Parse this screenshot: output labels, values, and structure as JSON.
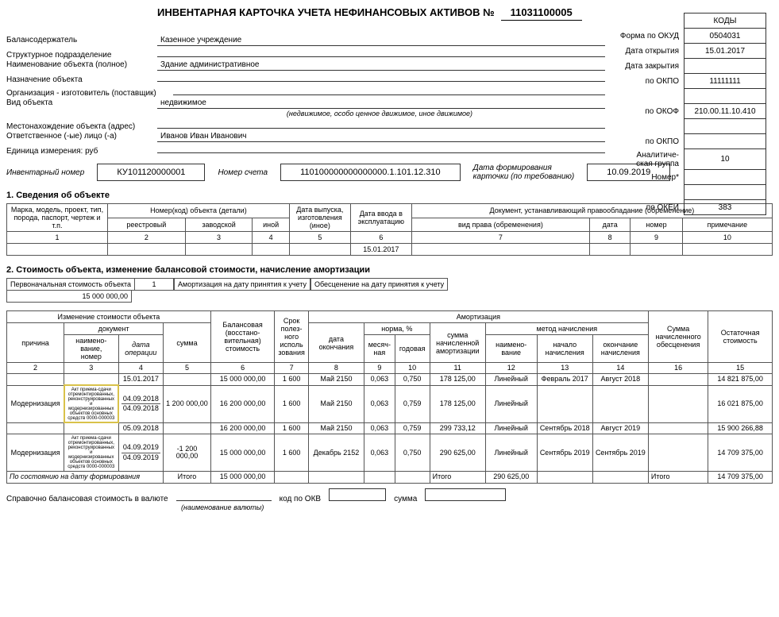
{
  "header": {
    "title": "ИНВЕНТАРНАЯ КАРТОЧКА УЧЕТА НЕФИНАНСОВЫХ АКТИВОВ  №",
    "card_number": "11031100005",
    "codes_header": "КОДЫ",
    "rows": [
      {
        "label": "Форма по ОКУД",
        "value": "0504031"
      },
      {
        "label": "Дата открытия",
        "value": "15.01.2017"
      },
      {
        "label": "Дата закрытия",
        "value": ""
      },
      {
        "label": "по ОКПО",
        "value": "11111111"
      },
      {
        "label": "",
        "value": ""
      },
      {
        "label": "по ОКОФ",
        "value": "210.00.11.10.410"
      },
      {
        "label": "",
        "value": ""
      },
      {
        "label": "по ОКПО",
        "value": ""
      },
      {
        "label": "Аналитиче-\nская группа",
        "value": "10"
      },
      {
        "label": "Номер*",
        "value": ""
      },
      {
        "label": "",
        "value": ""
      },
      {
        "label": "по ОКЕИ",
        "value": "383"
      }
    ]
  },
  "fields": [
    {
      "lbl": "Балансодержатель",
      "val": "Казенное учреждение"
    },
    {
      "lbl": "Структурное подразделение",
      "val": ""
    },
    {
      "lbl": "Наименование объекта (полное)",
      "val": "Здание административное"
    },
    {
      "lbl": "Назначение объекта",
      "val": ""
    },
    {
      "lbl": "Организация - изготовитель (поставщик)",
      "val": ""
    },
    {
      "lbl": "Вид объекта",
      "val": "недвижимое"
    },
    {
      "lbl": "",
      "val": "",
      "note": "(недвижимое, особо ценное движимое, иное движимое)"
    },
    {
      "lbl": "Местонахождение объекта (адрес)",
      "val": ""
    },
    {
      "lbl": "Ответственное (-ые) лицо (-а)",
      "val": "Иванов Иван Иванович"
    },
    {
      "lbl": "Единица измерения: руб",
      "val": ""
    }
  ],
  "inv": {
    "inv_num_lbl": "Инвентарный номер",
    "inv_num": "КУ101120000001",
    "acct_lbl": "Номер счета",
    "acct": "110100000000000000.1.101.12.310",
    "date_lbl": "Дата формирования\nкарточки (по требованию)",
    "date": "10.09.2019"
  },
  "section1": {
    "title": "1. Сведения об объекте",
    "headers": {
      "c1": "Марка, модель, проект, тип, порода, паспорт, чертеж и т.п.",
      "c2g": "Номер(код) объекта (детали)",
      "c2": "реестровый",
      "c3": "заводской",
      "c4": "иной",
      "c5": "Дата выпуска, изготовления (иное)",
      "c6": "Дата ввода в эксплуатацию",
      "c7g": "Документ, устанавливающий правообладание (обременение)",
      "c7": "вид права (обременения)",
      "c8": "дата",
      "c9": "номер",
      "c10": "примечание"
    },
    "nums": [
      "1",
      "2",
      "3",
      "4",
      "5",
      "6",
      "7",
      "8",
      "9",
      "10"
    ],
    "row": {
      "c6": "15.01.2017"
    }
  },
  "section2": {
    "title": "2. Стоимость объекта, изменение балансовой стоимости, начисление амортизации",
    "initial_lbl": "Первоначальная стоимость объекта",
    "initial_val": "15 000 000,00",
    "initial_num": "1",
    "amort_lbl": "Амортизация на дату принятия к учету",
    "deprec_lbl": "Обесценение на дату принятия к учету",
    "headers": {
      "g1": "Изменение стоимости объекта",
      "g1a": "документ",
      "c2": "причина",
      "c3": "наимено-\nвание,\nномер",
      "c4": "дата\nоперации",
      "c5": "сумма",
      "c6": "Балансовая (восстано-\nвительная) стоимость",
      "c7": "Срок\nполез-\nного\nисполь\nзования",
      "g2": "Амортизация",
      "c8": "дата\nокончания",
      "g2a": "норма, %",
      "c9": "месяч-\nная",
      "c10": "годовая",
      "c11": "сумма\nначисленной\nамортизации",
      "g2b": "метод начисления",
      "c12": "наимено-\nвание",
      "c13": "начало\nначисления",
      "c14": "окончание\nначисления",
      "c16": "Сумма\nначисленного\nобесценения",
      "c15": "Остаточная\nстоимость"
    },
    "nums": [
      "2",
      "3",
      "4",
      "5",
      "6",
      "7",
      "8",
      "9",
      "10",
      "11",
      "12",
      "13",
      "14",
      "16",
      "15"
    ],
    "rows": [
      {
        "c2": "",
        "c3": "",
        "c4": "15.01.2017",
        "c5": "",
        "c6": "15 000 000,00",
        "c7": "1 600",
        "c8": "Май 2150",
        "c9": "0,063",
        "c10": "0,750",
        "c11": "178 125,00",
        "c12": "Линейный",
        "c13": "Февраль 2017",
        "c14": "Август 2018",
        "c16": "",
        "c15": "14 821 875,00"
      },
      {
        "c2": "Модернизация",
        "c3": "Акт приема-сдачи отремонтированных, реконструированных и модернизированных объектов основных средств 0000-000003",
        "c4a": "04.09.2018",
        "c4b": "04.09.2018",
        "c5": "1 200 000,00",
        "c6": "16 200 000,00",
        "c7": "1 600",
        "c8": "Май 2150",
        "c9": "0,063",
        "c10": "0,759",
        "c11": "178 125,00",
        "c12": "Линейный",
        "c13": "",
        "c14": "",
        "c16": "",
        "c15": "16 021 875,00",
        "hl": true
      },
      {
        "c2": "",
        "c3": "",
        "c4": "05.09.2018",
        "c5": "",
        "c6": "16 200 000,00",
        "c7": "1 600",
        "c8": "Май 2150",
        "c9": "0,063",
        "c10": "0,759",
        "c11": "299 733,12",
        "c12": "Линейный",
        "c13": "Сентябрь 2018",
        "c14": "Август 2019",
        "c16": "",
        "c15": "15 900 266,88"
      },
      {
        "c2": "Модернизация",
        "c3": "Акт приема-сдачи отремонтированных, реконструированных и модернизированных объектов основных средств 0000-000003",
        "c4a": "04.09.2019",
        "c4b": "04.09.2019",
        "c5": "-1 200 000,00",
        "c6": "15 000 000,00",
        "c7": "1 600",
        "c8": "Декабрь 2152",
        "c9": "0,063",
        "c10": "0,750",
        "c11": "290 625,00",
        "c12": "Линейный",
        "c13": "Сентябрь 2019",
        "c14": "Сентябрь 2019",
        "c16": "",
        "c15": "14 709 375,00"
      }
    ],
    "totals_lbl": "По состоянию на дату формирования",
    "itogo": "Итого",
    "tot_bal": "15 000 000,00",
    "tot_amort": "290 625,00",
    "tot_ost": "14 709 375,00",
    "footer_lbl": "Справочно балансовая стоимость в валюте",
    "footer_okv": "код по ОКВ",
    "footer_sum": "сумма",
    "footer_note": "(наименование валюты)"
  },
  "colors": {
    "border": "#555555",
    "highlight": "#d9c24a"
  }
}
